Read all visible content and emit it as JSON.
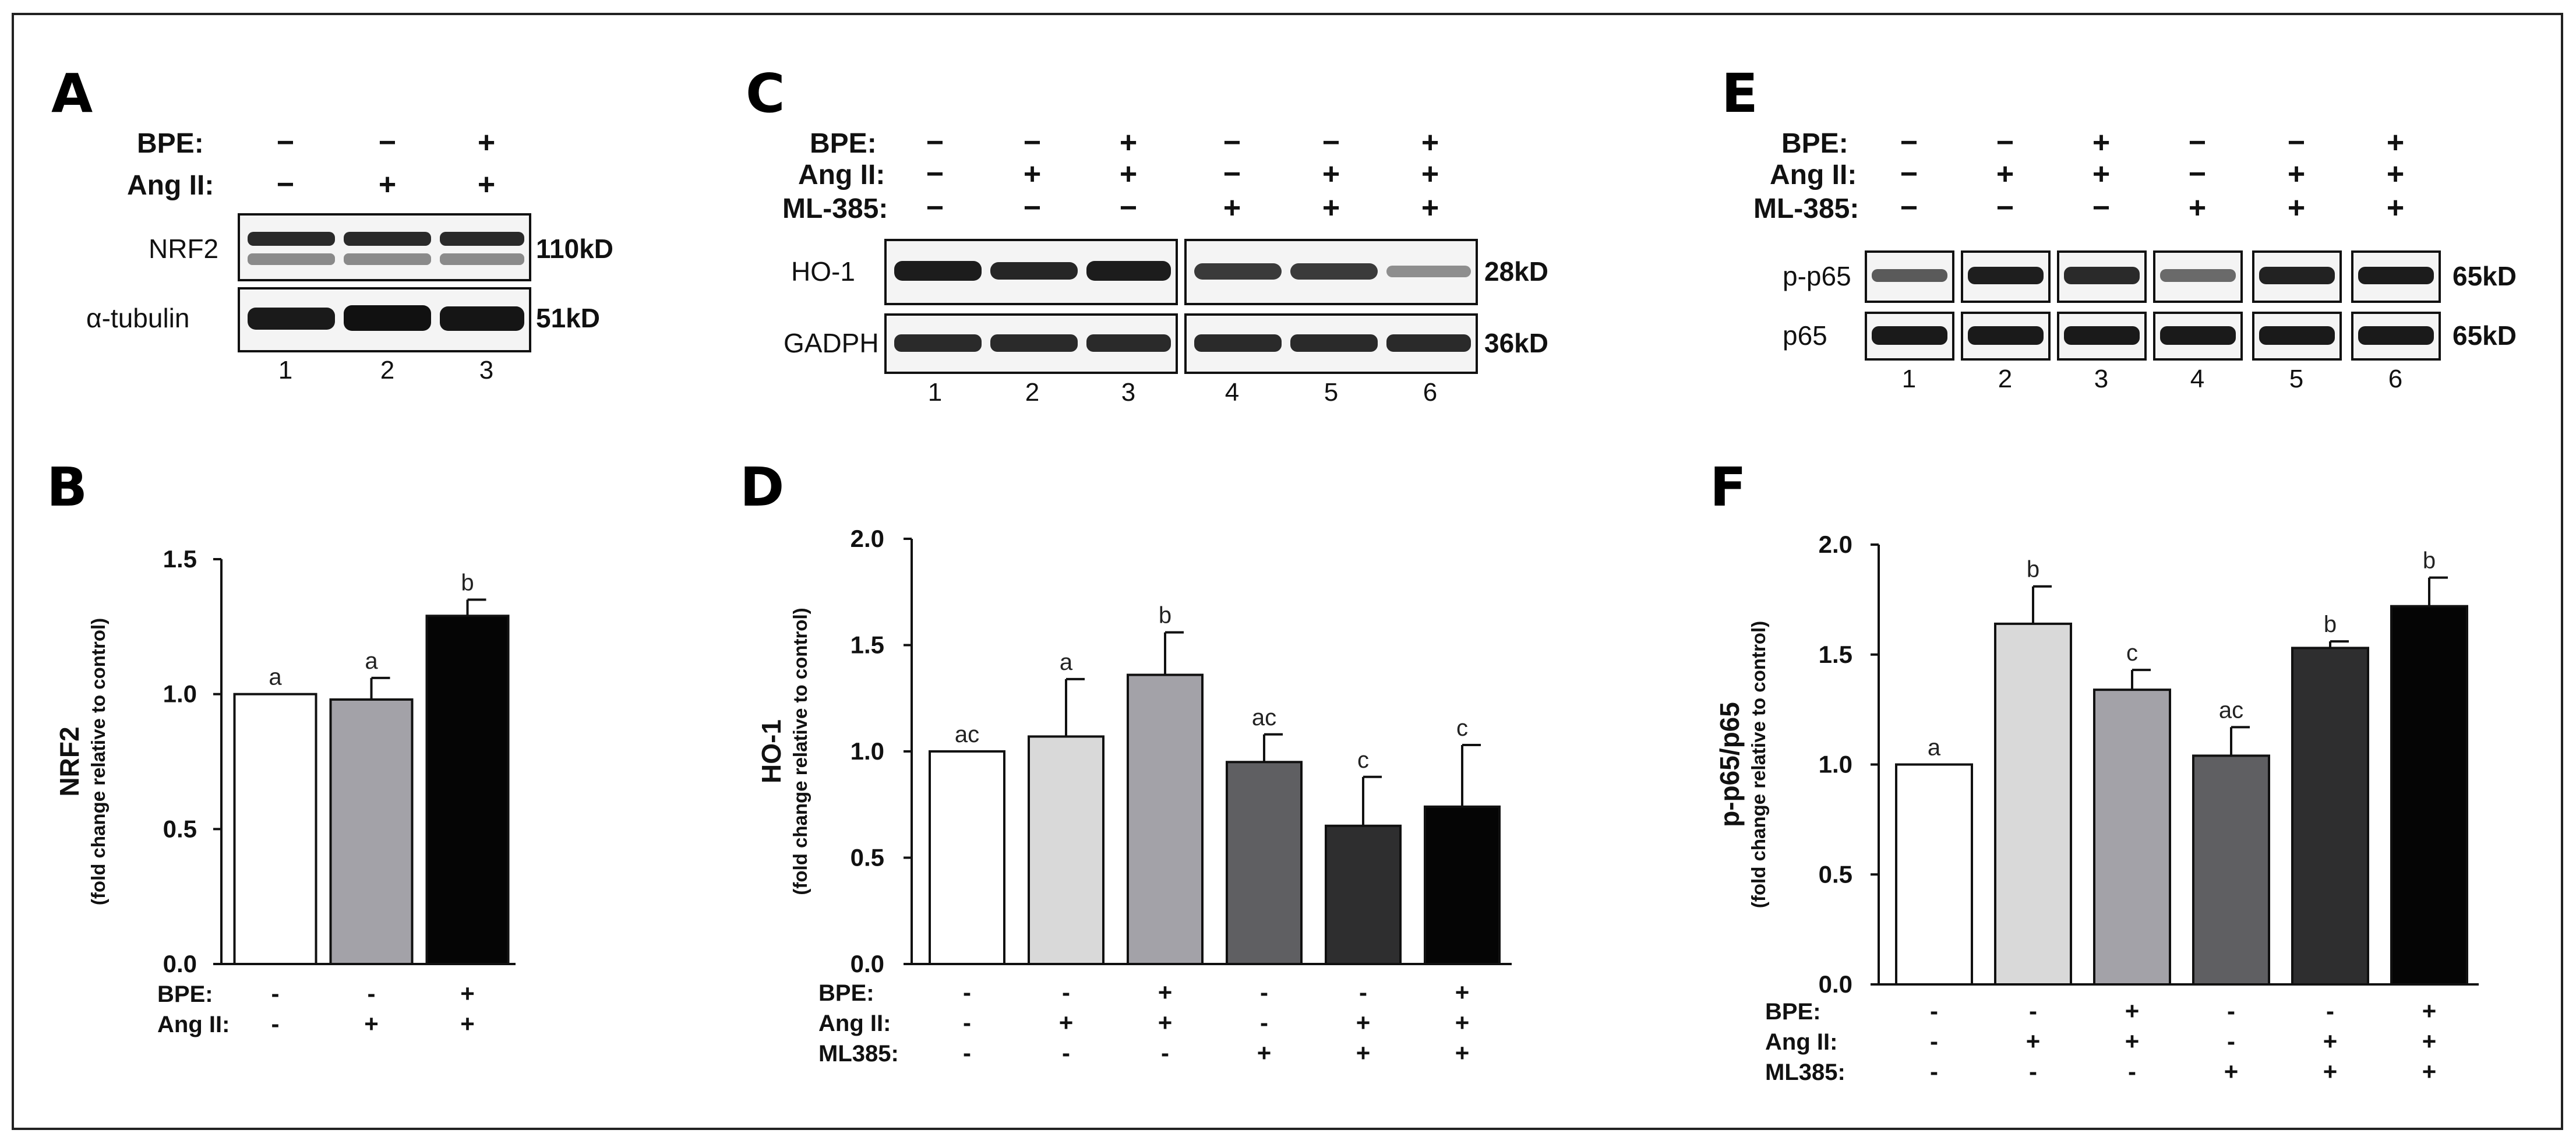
{
  "panels": {
    "A": {
      "letter": "A",
      "conditions": [
        {
          "label": "BPE:",
          "signs": [
            "−",
            "−",
            "+"
          ]
        },
        {
          "label": "Ang II:",
          "signs": [
            "−",
            "+",
            "+"
          ]
        }
      ],
      "rows": [
        {
          "label": "NRF2",
          "kd": "110kD"
        },
        {
          "label": "α-tubulin",
          "kd": "51kD"
        }
      ],
      "lanes": [
        "1",
        "2",
        "3"
      ]
    },
    "C": {
      "letter": "C",
      "conditions": [
        {
          "label": "BPE:",
          "signs": [
            "−",
            "−",
            "+",
            "−",
            "−",
            "+"
          ]
        },
        {
          "label": "Ang II:",
          "signs": [
            "−",
            "+",
            "+",
            "−",
            "+",
            "+"
          ]
        },
        {
          "label": "ML-385:",
          "signs": [
            "−",
            "−",
            "−",
            "+",
            "+",
            "+"
          ]
        }
      ],
      "rows": [
        {
          "label": "HO-1",
          "kd": "28kD"
        },
        {
          "label": "GADPH",
          "kd": "36kD"
        }
      ],
      "lanes": [
        "1",
        "2",
        "3",
        "4",
        "5",
        "6"
      ]
    },
    "E": {
      "letter": "E",
      "conditions": [
        {
          "label": "BPE:",
          "signs": [
            "−",
            "−",
            "+",
            "−",
            "−",
            "+"
          ]
        },
        {
          "label": "Ang II:",
          "signs": [
            "−",
            "+",
            "+",
            "−",
            "+",
            "+"
          ]
        },
        {
          "label": "ML-385:",
          "signs": [
            "−",
            "−",
            "−",
            "+",
            "+",
            "+"
          ]
        }
      ],
      "rows": [
        {
          "label": "p-p65",
          "kd": "65kD"
        },
        {
          "label": "p65",
          "kd": "65kD"
        }
      ],
      "lanes": [
        "1",
        "2",
        "3",
        "4",
        "5",
        "6"
      ]
    }
  },
  "chart_data": [
    {
      "panel": "B",
      "type": "bar",
      "ylabel": "NRF2",
      "ysublabel": "(fold change relative to control)",
      "ylim": [
        0,
        1.5
      ],
      "yticks": [
        0.0,
        0.5,
        1.0,
        1.5
      ],
      "ytick_labels": [
        "0.0",
        "0.5",
        "1.0",
        "1.5"
      ],
      "values": [
        1.0,
        0.98,
        1.29
      ],
      "errors": [
        0,
        0.08,
        0.06
      ],
      "letters": [
        "a",
        "a",
        "b"
      ],
      "colors": [
        "#ffffff",
        "#a3a2a8",
        "#050505"
      ],
      "conditions": [
        {
          "label": "BPE:",
          "signs": [
            "-",
            "-",
            "+"
          ]
        },
        {
          "label": "Ang II:",
          "signs": [
            "-",
            "+",
            "+"
          ]
        }
      ]
    },
    {
      "panel": "D",
      "type": "bar",
      "ylabel": "HO-1",
      "ysublabel": "(fold change relative to control)",
      "ylim": [
        0,
        2.0
      ],
      "yticks": [
        0.0,
        0.5,
        1.0,
        1.5,
        2.0
      ],
      "ytick_labels": [
        "0.0",
        "0.5",
        "1.0",
        "1.5",
        "2.0"
      ],
      "values": [
        1.0,
        1.07,
        1.36,
        0.95,
        0.65,
        0.74
      ],
      "errors": [
        0,
        0.27,
        0.2,
        0.13,
        0.23,
        0.29
      ],
      "letters": [
        "ac",
        "a",
        "b",
        "ac",
        "c",
        "c"
      ],
      "colors": [
        "#ffffff",
        "#d9d9d9",
        "#a3a2a8",
        "#5f5f62",
        "#2e2e2f",
        "#050505"
      ],
      "conditions": [
        {
          "label": "BPE:",
          "signs": [
            "-",
            "-",
            "+",
            "-",
            "-",
            "+"
          ]
        },
        {
          "label": "Ang II:",
          "signs": [
            "-",
            "+",
            "+",
            "-",
            "+",
            "+"
          ]
        },
        {
          "label": "ML385:",
          "signs": [
            "-",
            "-",
            "-",
            "+",
            "+",
            "+"
          ]
        }
      ]
    },
    {
      "panel": "F",
      "type": "bar",
      "ylabel": "p-p65/p65",
      "ysublabel": "(fold change relative to control)",
      "ylim": [
        0,
        2.0
      ],
      "yticks": [
        0.0,
        0.5,
        1.0,
        1.5,
        2.0
      ],
      "ytick_labels": [
        "0.0",
        "0.5",
        "1.0",
        "1.5",
        "2.0"
      ],
      "values": [
        1.0,
        1.64,
        1.34,
        1.04,
        1.53,
        1.72
      ],
      "errors": [
        0,
        0.17,
        0.09,
        0.13,
        0.03,
        0.13
      ],
      "letters": [
        "a",
        "b",
        "c",
        "ac",
        "b",
        "b"
      ],
      "colors": [
        "#ffffff",
        "#d9d9d9",
        "#a3a2a8",
        "#5f5f62",
        "#2e2e2f",
        "#050505"
      ],
      "conditions": [
        {
          "label": "BPE:",
          "signs": [
            "-",
            "-",
            "+",
            "-",
            "-",
            "+"
          ]
        },
        {
          "label": "Ang II:",
          "signs": [
            "-",
            "+",
            "+",
            "-",
            "+",
            "+"
          ]
        },
        {
          "label": "ML385:",
          "signs": [
            "-",
            "-",
            "-",
            "+",
            "+",
            "+"
          ]
        }
      ]
    }
  ]
}
